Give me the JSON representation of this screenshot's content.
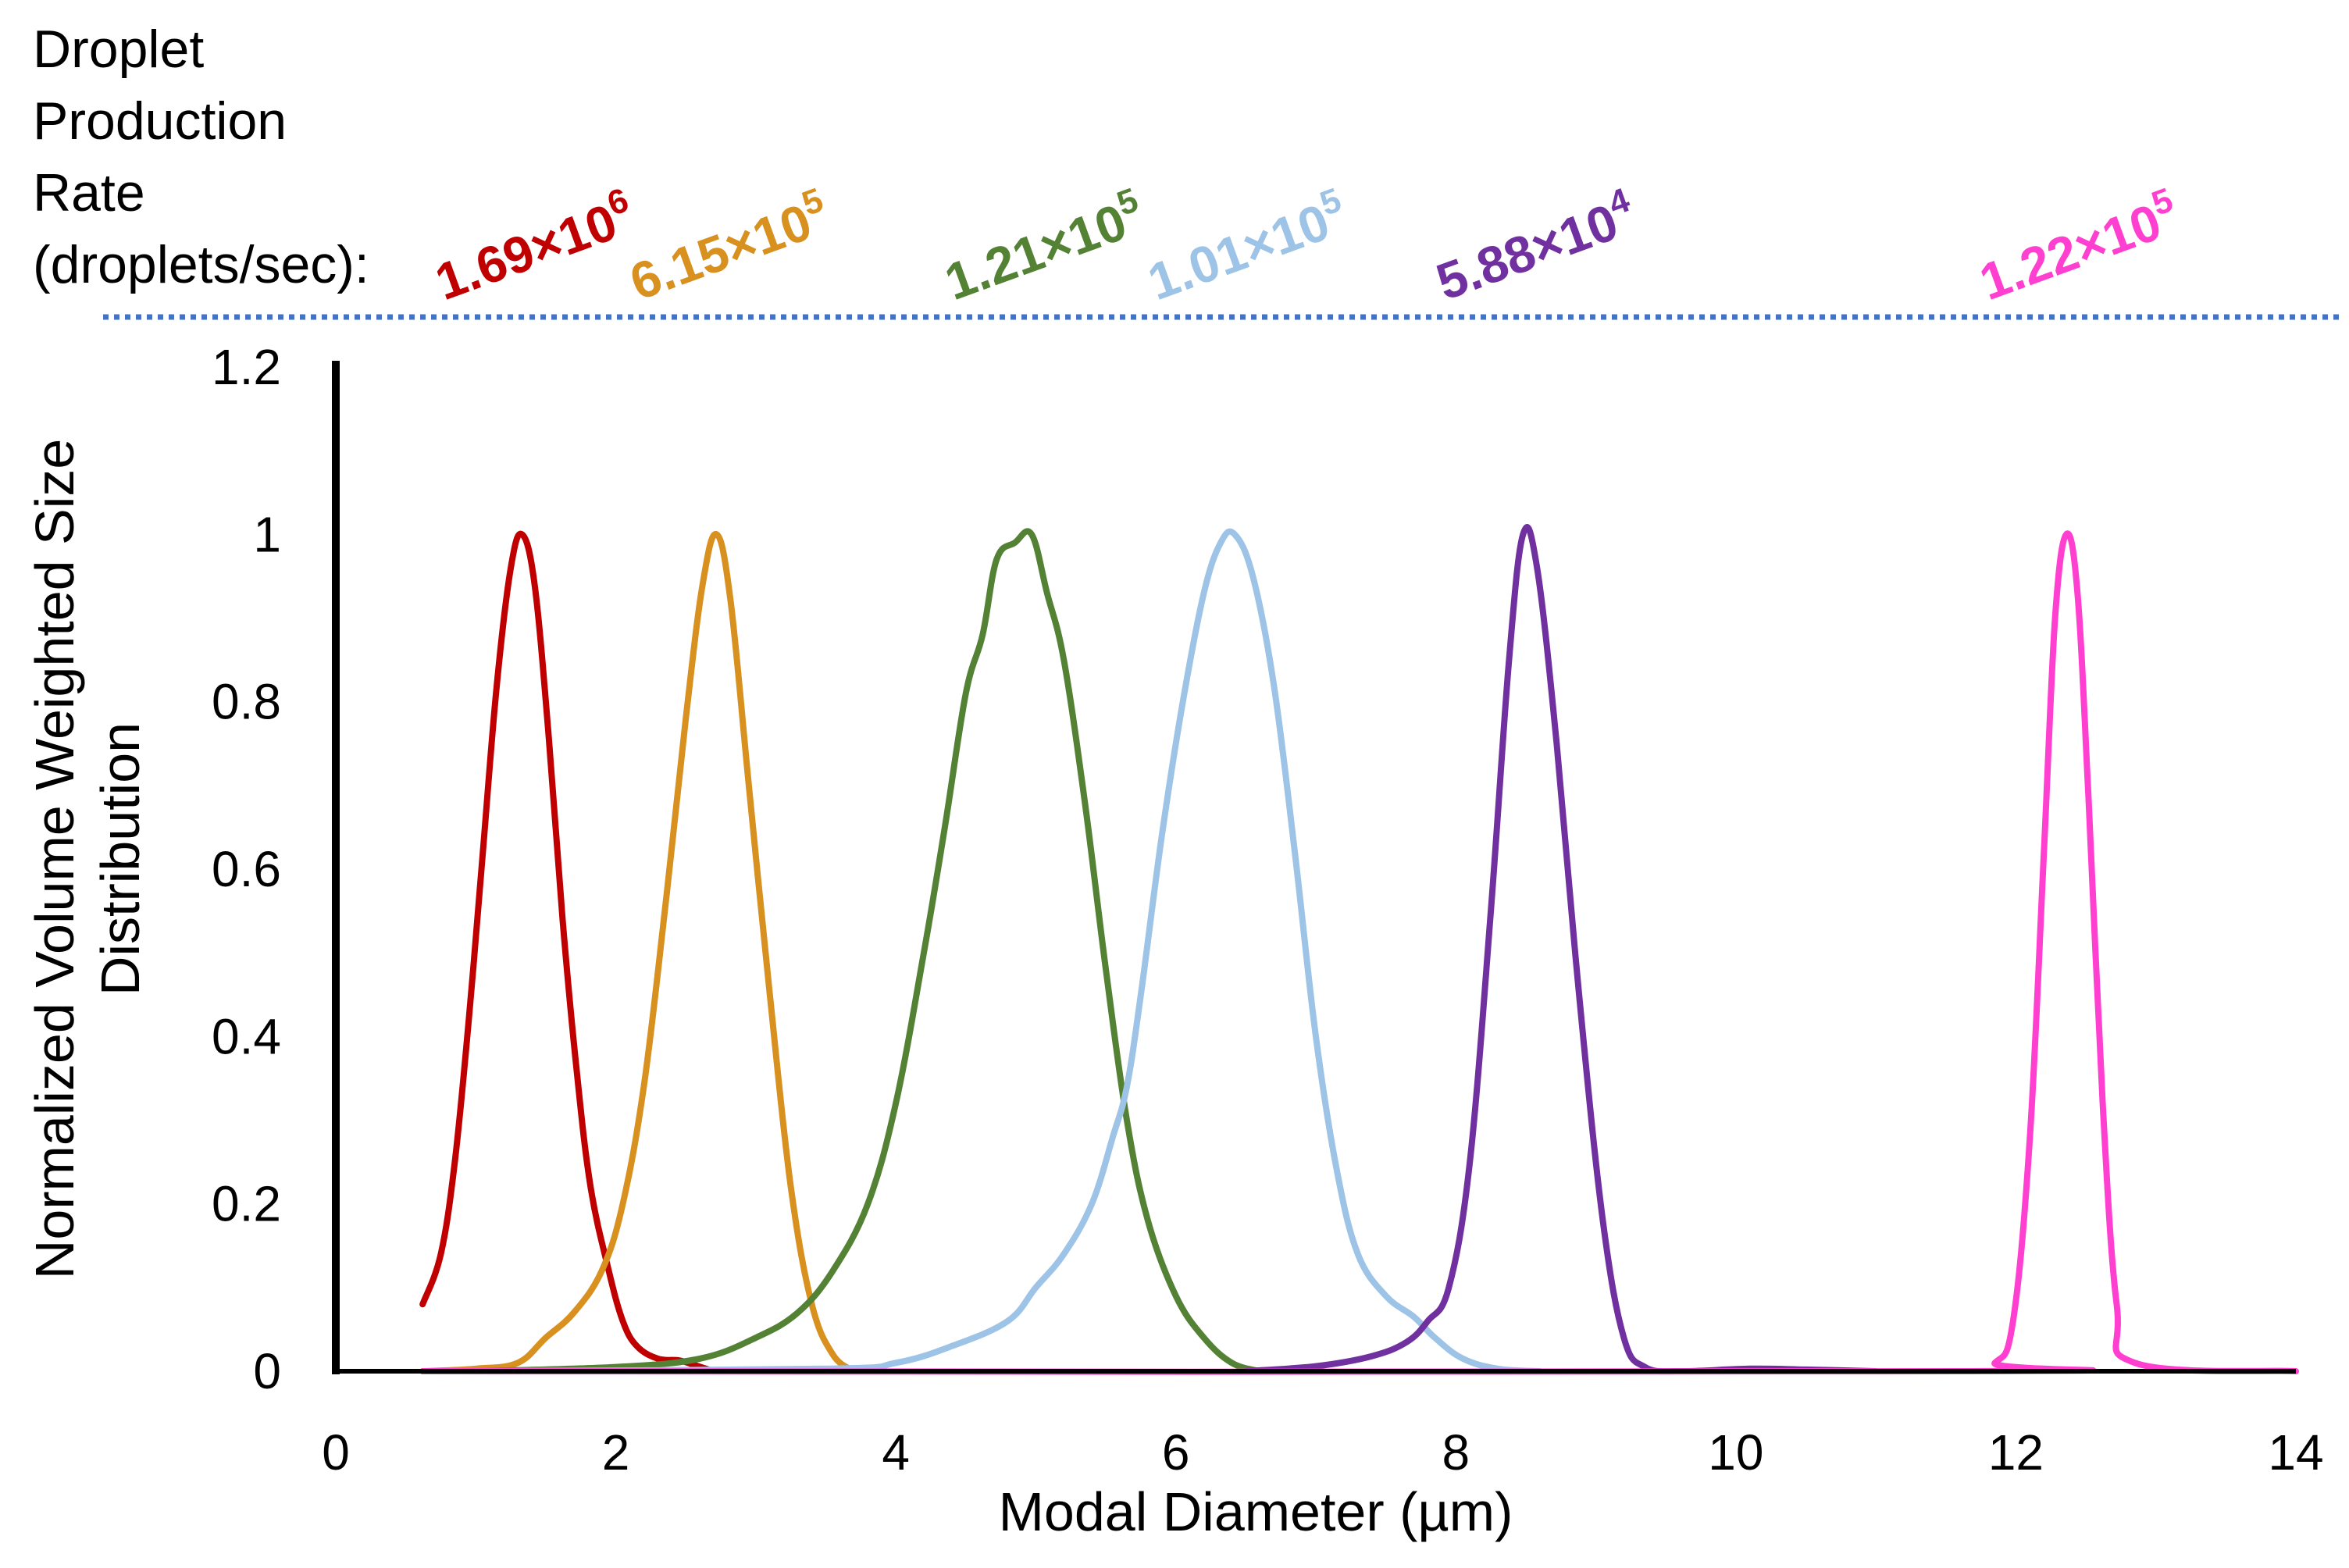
{
  "chart_data": {
    "type": "line",
    "title": "",
    "xlabel": "Modal Diameter (µm)",
    "ylabel_lines": [
      "Normalized Volume Weighted Size",
      "Distribution"
    ],
    "xlim": [
      0,
      14
    ],
    "ylim": [
      0,
      1.2
    ],
    "x_ticks": [
      0,
      2,
      4,
      6,
      8,
      10,
      12,
      14
    ],
    "y_ticks": [
      0,
      0.2,
      0.4,
      0.6,
      0.8,
      1,
      1.2
    ],
    "x_tick_labels": [
      "0",
      "2",
      "4",
      "6",
      "8",
      "10",
      "12",
      "14"
    ],
    "y_tick_labels": [
      "0",
      "0.2",
      "0.4",
      "0.6",
      "0.8",
      "1",
      "1.2"
    ],
    "grid": false,
    "rate_header": {
      "lines": [
        "Droplet",
        "Production",
        "Rate",
        "(droplets/sec):"
      ]
    },
    "series": [
      {
        "name": "1.69×10^6",
        "rate_mantissa": "1.69×10",
        "rate_exponent": "6",
        "color": "#c00000",
        "points": [
          [
            0.62,
            0.08
          ],
          [
            0.75,
            0.14
          ],
          [
            0.85,
            0.25
          ],
          [
            0.95,
            0.42
          ],
          [
            1.05,
            0.62
          ],
          [
            1.15,
            0.82
          ],
          [
            1.25,
            0.96
          ],
          [
            1.33,
            1.0
          ],
          [
            1.42,
            0.94
          ],
          [
            1.52,
            0.76
          ],
          [
            1.62,
            0.54
          ],
          [
            1.72,
            0.36
          ],
          [
            1.82,
            0.22
          ],
          [
            1.95,
            0.12
          ],
          [
            2.05,
            0.06
          ],
          [
            2.15,
            0.03
          ],
          [
            2.3,
            0.015
          ],
          [
            2.45,
            0.013
          ],
          [
            2.55,
            0.008
          ],
          [
            2.7,
            0.0
          ]
        ]
      },
      {
        "name": "6.15×10^5",
        "rate_mantissa": "6.15×10",
        "rate_exponent": "5",
        "color": "#d8901f",
        "points": [
          [
            0.62,
            0.0
          ],
          [
            1.0,
            0.003
          ],
          [
            1.3,
            0.01
          ],
          [
            1.5,
            0.04
          ],
          [
            1.7,
            0.07
          ],
          [
            1.9,
            0.12
          ],
          [
            2.05,
            0.2
          ],
          [
            2.2,
            0.34
          ],
          [
            2.35,
            0.55
          ],
          [
            2.5,
            0.78
          ],
          [
            2.62,
            0.94
          ],
          [
            2.72,
            1.0
          ],
          [
            2.82,
            0.92
          ],
          [
            2.95,
            0.7
          ],
          [
            3.1,
            0.45
          ],
          [
            3.25,
            0.22
          ],
          [
            3.4,
            0.08
          ],
          [
            3.55,
            0.02
          ],
          [
            3.7,
            0.0
          ]
        ]
      },
      {
        "name": "1.21×10^5",
        "rate_mantissa": "1.21×10",
        "rate_exponent": "5",
        "color": "#548235",
        "points": [
          [
            1.0,
            0.0
          ],
          [
            2.0,
            0.005
          ],
          [
            2.6,
            0.015
          ],
          [
            3.0,
            0.04
          ],
          [
            3.3,
            0.07
          ],
          [
            3.55,
            0.12
          ],
          [
            3.8,
            0.2
          ],
          [
            4.0,
            0.32
          ],
          [
            4.2,
            0.5
          ],
          [
            4.35,
            0.65
          ],
          [
            4.5,
            0.81
          ],
          [
            4.62,
            0.88
          ],
          [
            4.72,
            0.97
          ],
          [
            4.85,
            0.99
          ],
          [
            4.97,
            1.0
          ],
          [
            5.08,
            0.93
          ],
          [
            5.2,
            0.85
          ],
          [
            5.35,
            0.68
          ],
          [
            5.5,
            0.48
          ],
          [
            5.65,
            0.3
          ],
          [
            5.8,
            0.18
          ],
          [
            6.0,
            0.09
          ],
          [
            6.2,
            0.04
          ],
          [
            6.4,
            0.01
          ],
          [
            6.6,
            0.0
          ]
        ]
      },
      {
        "name": "1.01×10^5",
        "rate_mantissa": "1.01×10",
        "rate_exponent": "5",
        "color": "#9dc3e6",
        "points": [
          [
            1.0,
            0.0
          ],
          [
            3.5,
            0.003
          ],
          [
            4.0,
            0.01
          ],
          [
            4.4,
            0.03
          ],
          [
            4.8,
            0.06
          ],
          [
            5.0,
            0.1
          ],
          [
            5.2,
            0.14
          ],
          [
            5.4,
            0.2
          ],
          [
            5.55,
            0.28
          ],
          [
            5.65,
            0.34
          ],
          [
            5.75,
            0.45
          ],
          [
            5.9,
            0.64
          ],
          [
            6.05,
            0.8
          ],
          [
            6.2,
            0.93
          ],
          [
            6.32,
            0.99
          ],
          [
            6.42,
            1.0
          ],
          [
            6.55,
            0.95
          ],
          [
            6.7,
            0.82
          ],
          [
            6.85,
            0.62
          ],
          [
            7.0,
            0.4
          ],
          [
            7.15,
            0.24
          ],
          [
            7.3,
            0.14
          ],
          [
            7.5,
            0.09
          ],
          [
            7.7,
            0.065
          ],
          [
            7.85,
            0.04
          ],
          [
            8.05,
            0.015
          ],
          [
            8.3,
            0.003
          ],
          [
            8.6,
            0.0
          ]
        ]
      },
      {
        "name": "5.88×10^4",
        "rate_mantissa": "5.88×10",
        "rate_exponent": "4",
        "color": "#7030a0",
        "points": [
          [
            6.5,
            0.0
          ],
          [
            7.0,
            0.006
          ],
          [
            7.4,
            0.018
          ],
          [
            7.65,
            0.035
          ],
          [
            7.8,
            0.06
          ],
          [
            7.95,
            0.1
          ],
          [
            8.1,
            0.25
          ],
          [
            8.25,
            0.55
          ],
          [
            8.38,
            0.85
          ],
          [
            8.48,
            1.0
          ],
          [
            8.58,
            0.96
          ],
          [
            8.72,
            0.75
          ],
          [
            8.88,
            0.45
          ],
          [
            9.05,
            0.18
          ],
          [
            9.2,
            0.04
          ],
          [
            9.35,
            0.005
          ],
          [
            9.6,
            0.0
          ],
          [
            10.1,
            0.003
          ],
          [
            10.5,
            0.002
          ],
          [
            11.0,
            0.0
          ]
        ]
      },
      {
        "name": "1.22×10^5",
        "rate_mantissa": "1.22×10",
        "rate_exponent": "5",
        "color": "#ff3fd0",
        "points": [
          [
            0.62,
            0.0
          ],
          [
            11.6,
            0.0
          ],
          [
            11.85,
            0.01
          ],
          [
            11.98,
            0.06
          ],
          [
            12.1,
            0.28
          ],
          [
            12.2,
            0.62
          ],
          [
            12.28,
            0.9
          ],
          [
            12.36,
            1.0
          ],
          [
            12.44,
            0.93
          ],
          [
            12.52,
            0.68
          ],
          [
            12.62,
            0.32
          ],
          [
            12.72,
            0.08
          ],
          [
            12.85,
            0.01
          ],
          [
            14.0,
            0.0
          ]
        ]
      }
    ]
  }
}
